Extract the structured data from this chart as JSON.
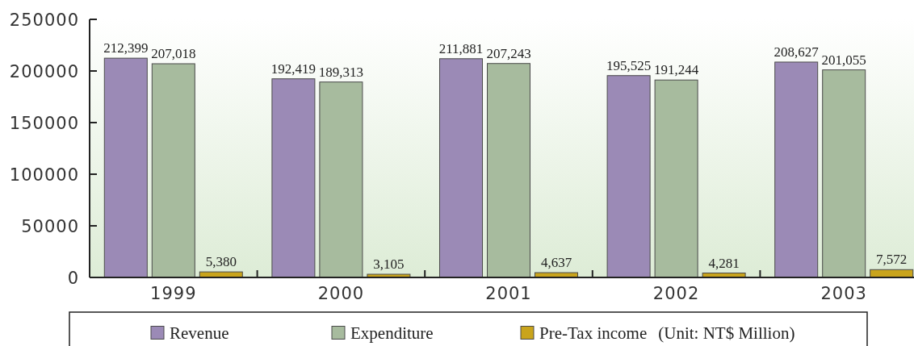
{
  "chart_data": {
    "type": "bar",
    "categories": [
      "1999",
      "2000",
      "2001",
      "2002",
      "2003"
    ],
    "series": [
      {
        "name": "Revenue",
        "color": "#9b8ab6",
        "values": [
          212399,
          192419,
          211881,
          195525,
          208627
        ],
        "value_labels": [
          "212,399",
          "192,419",
          "211,881",
          "195,525",
          "208,627"
        ]
      },
      {
        "name": "Expenditure",
        "color": "#a7bb9e",
        "values": [
          207018,
          189313,
          207243,
          191244,
          201055
        ],
        "value_labels": [
          "207,018",
          "189,313",
          "207,243",
          "191,244",
          "201,055"
        ]
      },
      {
        "name": "Pre-Tax income",
        "color": "#c9a41c",
        "values": [
          5380,
          3105,
          4637,
          4281,
          7572
        ],
        "value_labels": [
          "5,380",
          "3,105",
          "4,637",
          "4,281",
          "7,572"
        ]
      }
    ],
    "ylim": [
      0,
      250000
    ],
    "yticks": [
      0,
      50000,
      100000,
      150000,
      200000,
      250000
    ],
    "legend": "bottom",
    "annotations": [
      "(Unit: NT$ Million)"
    ]
  }
}
